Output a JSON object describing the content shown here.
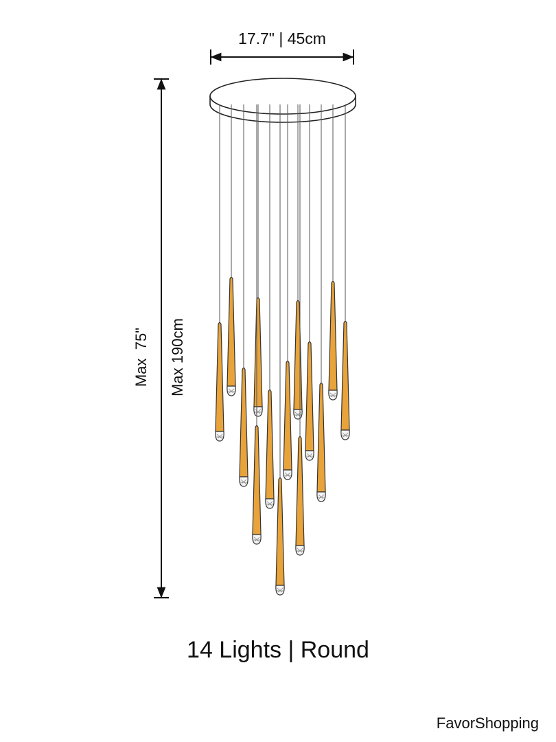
{
  "dimensions": {
    "width": "17.7\" | 45cm",
    "height_in": "Max  75\"",
    "height_cm": "Max 190cm"
  },
  "caption": "14 Lights | Round",
  "brand": "FavorShopping"
}
